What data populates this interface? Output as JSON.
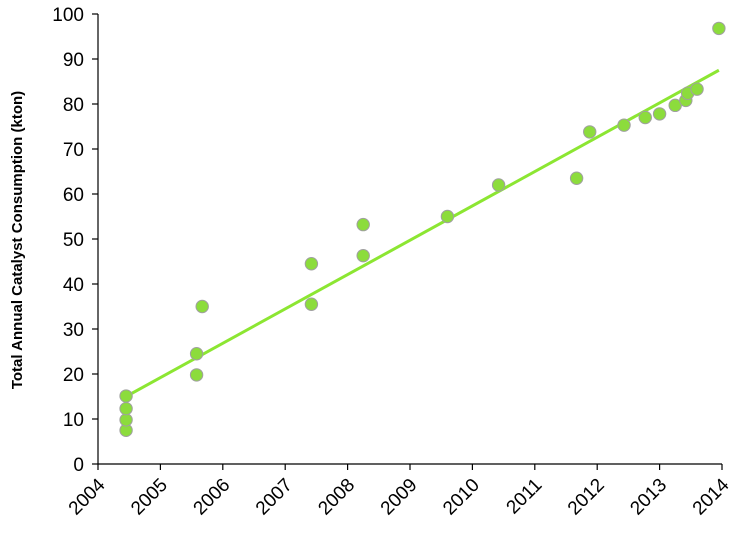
{
  "chart_data": {
    "type": "scatter",
    "title": "",
    "xlabel": "",
    "ylabel": "Total Annual Catalyst Consumption (kton)",
    "xlim": [
      2004,
      2014
    ],
    "ylim": [
      0,
      100
    ],
    "x_ticks": [
      "2004",
      "2005",
      "2006",
      "2007",
      "2008",
      "2009",
      "2010",
      "2011",
      "2012",
      "2013",
      "2014"
    ],
    "y_ticks": [
      "0",
      "10",
      "20",
      "30",
      "40",
      "50",
      "60",
      "70",
      "80",
      "90",
      "100"
    ],
    "grid": false,
    "legend": "none",
    "colors": {
      "point_fill": "#8cdc3c",
      "point_stroke": "#a0a0a0",
      "trendline": "#8ce632",
      "axis": "#000000"
    },
    "series": [
      {
        "points": [
          [
            2004.45,
            7.5
          ],
          [
            2004.45,
            9.8
          ],
          [
            2004.45,
            12.3
          ],
          [
            2004.45,
            15.1
          ],
          [
            2005.58,
            19.8
          ],
          [
            2005.58,
            24.5
          ],
          [
            2005.67,
            35.0
          ],
          [
            2007.42,
            35.5
          ],
          [
            2007.42,
            44.5
          ],
          [
            2008.25,
            46.3
          ],
          [
            2008.25,
            53.2
          ],
          [
            2009.6,
            55.0
          ],
          [
            2010.42,
            62.0
          ],
          [
            2011.67,
            63.5
          ],
          [
            2011.88,
            73.8
          ],
          [
            2012.43,
            75.3
          ],
          [
            2012.77,
            77.0
          ],
          [
            2013.0,
            77.8
          ],
          [
            2013.25,
            79.7
          ],
          [
            2013.42,
            80.8
          ],
          [
            2013.45,
            82.4
          ],
          [
            2013.6,
            83.3
          ],
          [
            2013.95,
            96.8
          ]
        ]
      }
    ],
    "trendline": {
      "type": "linear",
      "x": [
        2004.45,
        2013.95
      ],
      "y": [
        15.0,
        87.5
      ]
    }
  }
}
